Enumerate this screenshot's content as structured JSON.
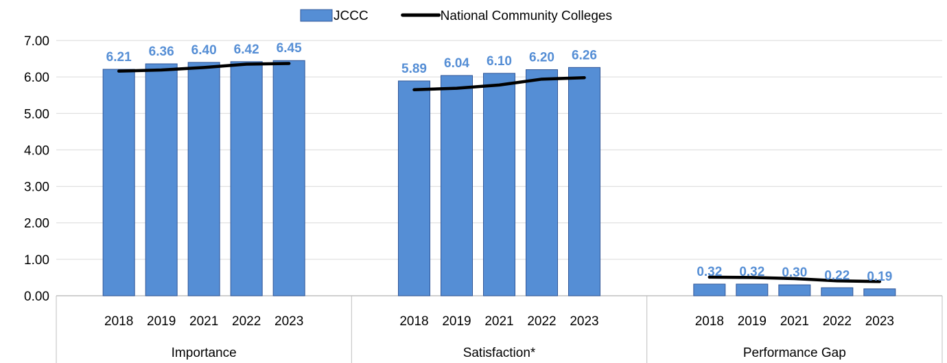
{
  "chart_data": {
    "type": "bar",
    "groups": [
      {
        "label": "Importance",
        "categories": [
          "2018",
          "2019",
          "2021",
          "2022",
          "2023"
        ]
      },
      {
        "label": "Satisfaction*",
        "categories": [
          "2018",
          "2019",
          "2021",
          "2022",
          "2023"
        ]
      },
      {
        "label": "Performance Gap",
        "categories": [
          "2018",
          "2019",
          "2021",
          "2022",
          "2023"
        ]
      }
    ],
    "series": [
      {
        "name": "JCCC",
        "kind": "bar",
        "color": "#558ED5",
        "values": [
          [
            6.21,
            6.36,
            6.4,
            6.42,
            6.45
          ],
          [
            5.89,
            6.04,
            6.1,
            6.2,
            6.26
          ],
          [
            0.32,
            0.32,
            0.3,
            0.22,
            0.19
          ]
        ],
        "labels": [
          [
            "6.21",
            "6.36",
            "6.40",
            "6.42",
            "6.45"
          ],
          [
            "5.89",
            "6.04",
            "6.10",
            "6.20",
            "6.26"
          ],
          [
            "0.32",
            "0.32",
            "0.30",
            "0.22",
            "0.19"
          ]
        ]
      },
      {
        "name": "National Community Colleges",
        "kind": "line",
        "color": "#000000",
        "values": [
          [
            6.16,
            6.19,
            6.26,
            6.35,
            6.37
          ],
          [
            5.65,
            5.69,
            5.78,
            5.94,
            5.98
          ],
          [
            0.51,
            0.5,
            0.47,
            0.41,
            0.39
          ]
        ]
      }
    ],
    "yticks": [
      "0.00",
      "1.00",
      "2.00",
      "3.00",
      "4.00",
      "5.00",
      "6.00",
      "7.00"
    ],
    "ylim": [
      0,
      7
    ],
    "grid": true,
    "legend_position": "top-center",
    "label_color": "#558ED5"
  }
}
